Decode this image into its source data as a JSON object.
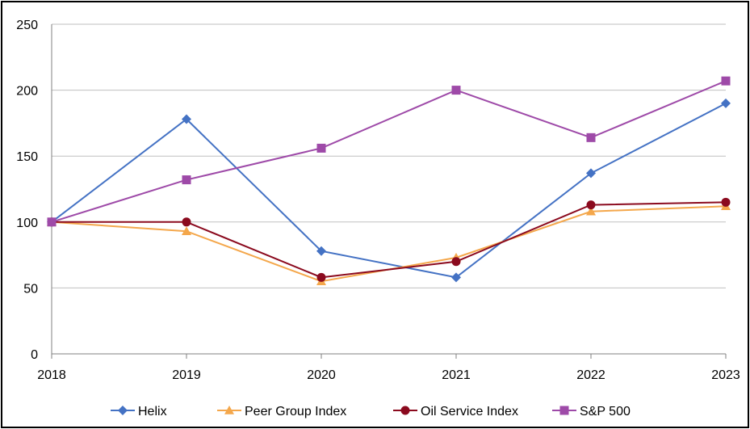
{
  "chart_data": {
    "type": "line",
    "x": [
      "2018",
      "2019",
      "2020",
      "2021",
      "2022",
      "2023"
    ],
    "ylim": [
      0,
      250
    ],
    "yticks": [
      0,
      50,
      100,
      150,
      200,
      250
    ],
    "grid": true,
    "legend_position": "bottom",
    "series": [
      {
        "name": "Helix",
        "color": "#4472C4",
        "marker": "diamond",
        "values": [
          100,
          178,
          78,
          58,
          137,
          190
        ]
      },
      {
        "name": "Peer Group Index",
        "color": "#F4A74B",
        "marker": "triangle",
        "values": [
          100,
          93,
          55,
          73,
          108,
          112
        ]
      },
      {
        "name": "Oil Service Index",
        "color": "#8B0A1E",
        "marker": "circle",
        "values": [
          100,
          100,
          58,
          70,
          113,
          115
        ]
      },
      {
        "name": "S&P 500",
        "color": "#9E4AA8",
        "marker": "square",
        "values": [
          100,
          132,
          156,
          200,
          164,
          207
        ]
      }
    ]
  }
}
